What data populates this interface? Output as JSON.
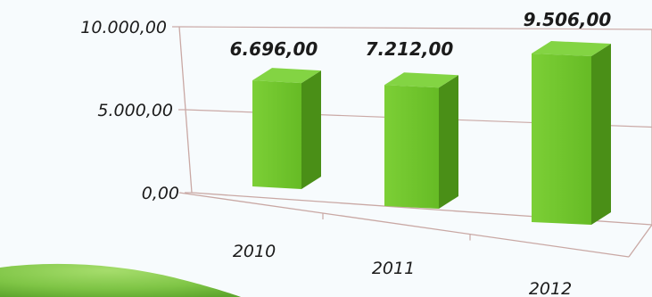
{
  "chart_data": {
    "type": "bar",
    "title": "",
    "xlabel": "",
    "ylabel": "",
    "categories": [
      "2010",
      "2011",
      "2012"
    ],
    "series": [
      {
        "values": [
          6696,
          7212,
          9506
        ]
      }
    ],
    "data_labels": [
      "6.696,00",
      "7.212,00",
      "9.506,00"
    ],
    "y_ticks": [
      {
        "value": 0,
        "label": "0,00"
      },
      {
        "value": 5000,
        "label": "5.000,00"
      },
      {
        "value": 10000,
        "label": "10.000,00"
      }
    ],
    "ylim": [
      0,
      10000
    ],
    "grid": true,
    "legend": "none",
    "colors": {
      "bar_front": "#6cc22a",
      "bar_side": "#4a8f17",
      "bar_top": "#83d443",
      "grid": "#caa9a6",
      "axis": "#c9a8a4",
      "wall": "#f7fbfd",
      "ground": "#7fc546"
    }
  }
}
